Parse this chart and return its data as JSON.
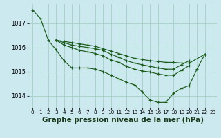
{
  "background_color": "#cde9f0",
  "grid_color": "#a8d5c8",
  "line_color": "#1a5c1a",
  "marker_color": "#1a5c1a",
  "xlabel": "Graphe pression niveau de la mer (hPa)",
  "xlabel_fontsize": 7.5,
  "ylim": [
    1013.5,
    1017.8
  ],
  "xlim": [
    -0.5,
    23.5
  ],
  "yticks": [
    1014,
    1015,
    1016,
    1017
  ],
  "xticks": [
    0,
    1,
    2,
    3,
    4,
    5,
    6,
    7,
    8,
    9,
    10,
    11,
    12,
    13,
    14,
    15,
    16,
    17,
    18,
    19,
    20,
    21,
    22,
    23
  ],
  "series": [
    {
      "x": [
        0,
        1,
        2,
        3,
        4,
        5,
        6,
        7,
        8,
        9,
        10,
        11,
        12,
        13,
        14,
        15,
        16,
        17,
        18,
        19,
        20,
        21,
        22
      ],
      "y": [
        1017.55,
        1017.2,
        1016.3,
        1015.9,
        1015.45,
        1015.15,
        1015.15,
        1015.15,
        1015.1,
        1015.0,
        1014.85,
        1014.7,
        1014.55,
        1014.45,
        1014.15,
        1013.82,
        1013.72,
        1013.72,
        1014.1,
        1014.3,
        1014.42,
        1015.1,
        1015.72
      ]
    },
    {
      "x": [
        3,
        4,
        5,
        6,
        7,
        8,
        9,
        10,
        11,
        12,
        13,
        14,
        15,
        16,
        17,
        18,
        19,
        20,
        22
      ],
      "y": [
        1016.3,
        1016.25,
        1016.2,
        1016.15,
        1016.1,
        1016.05,
        1015.95,
        1015.85,
        1015.75,
        1015.65,
        1015.55,
        1015.5,
        1015.45,
        1015.42,
        1015.38,
        1015.38,
        1015.35,
        1015.35,
        1015.72
      ]
    },
    {
      "x": [
        3,
        4,
        5,
        6,
        7,
        8,
        9,
        10,
        11,
        12,
        13,
        14,
        15,
        16,
        17,
        18,
        19,
        20
      ],
      "y": [
        1016.3,
        1016.2,
        1016.1,
        1016.05,
        1016.0,
        1015.95,
        1015.88,
        1015.72,
        1015.6,
        1015.45,
        1015.35,
        1015.28,
        1015.22,
        1015.15,
        1015.1,
        1015.1,
        1015.28,
        1015.45
      ]
    },
    {
      "x": [
        3,
        4,
        5,
        6,
        7,
        8,
        9,
        10,
        11,
        12,
        13,
        14,
        15,
        16,
        17,
        18,
        19,
        20
      ],
      "y": [
        1016.3,
        1016.1,
        1016.0,
        1015.88,
        1015.82,
        1015.75,
        1015.65,
        1015.48,
        1015.38,
        1015.22,
        1015.1,
        1015.02,
        1014.98,
        1014.9,
        1014.85,
        1014.85,
        1015.05,
        1015.25
      ]
    }
  ]
}
